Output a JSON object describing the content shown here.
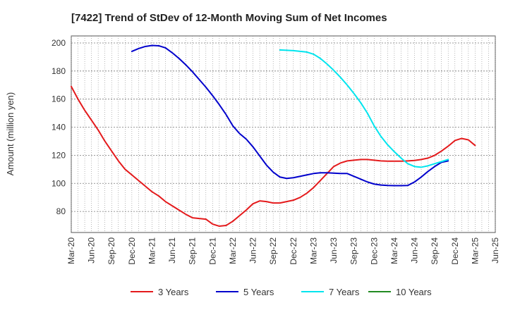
{
  "chart_data": {
    "type": "line",
    "title": "[7422]  Trend of StDev of 12-Month Moving Sum of Net Incomes",
    "ylabel": "Amount (million yen)",
    "xlabel": "",
    "ylim": [
      65,
      205
    ],
    "yticks": [
      80,
      100,
      120,
      140,
      160,
      180,
      200
    ],
    "xlim": [
      "2020-03",
      "2025-06"
    ],
    "xticks": [
      "Mar-20",
      "Jun-20",
      "Sep-20",
      "Dec-20",
      "Mar-21",
      "Jun-21",
      "Sep-21",
      "Dec-21",
      "Mar-22",
      "Jun-22",
      "Sep-22",
      "Dec-22",
      "Mar-23",
      "Jun-23",
      "Sep-23",
      "Dec-23",
      "Mar-24",
      "Jun-24",
      "Sep-24",
      "Dec-24",
      "Mar-25",
      "Jun-25"
    ],
    "grid": true,
    "legend_position": "bottom",
    "series": [
      {
        "name": "3 Years",
        "color": "#e41a1c",
        "points": [
          [
            "2020-03",
            169
          ],
          [
            "2020-04",
            160
          ],
          [
            "2020-05",
            152
          ],
          [
            "2020-06",
            145
          ],
          [
            "2020-07",
            138
          ],
          [
            "2020-08",
            130
          ],
          [
            "2020-09",
            123
          ],
          [
            "2020-10",
            116
          ],
          [
            "2020-11",
            110
          ],
          [
            "2020-12",
            106
          ],
          [
            "2021-01",
            102
          ],
          [
            "2021-02",
            98
          ],
          [
            "2021-03",
            94
          ],
          [
            "2021-04",
            91
          ],
          [
            "2021-05",
            87
          ],
          [
            "2021-06",
            84
          ],
          [
            "2021-07",
            81
          ],
          [
            "2021-08",
            78
          ],
          [
            "2021-09",
            75.5
          ],
          [
            "2021-10",
            75
          ],
          [
            "2021-11",
            74.5
          ],
          [
            "2021-12",
            71
          ],
          [
            "2022-01",
            69.5
          ],
          [
            "2022-02",
            70
          ],
          [
            "2022-03",
            73
          ],
          [
            "2022-04",
            77
          ],
          [
            "2022-05",
            81
          ],
          [
            "2022-06",
            85.5
          ],
          [
            "2022-07",
            87.5
          ],
          [
            "2022-08",
            87
          ],
          [
            "2022-09",
            86
          ],
          [
            "2022-10",
            86
          ],
          [
            "2022-11",
            87
          ],
          [
            "2022-12",
            88
          ],
          [
            "2023-01",
            90
          ],
          [
            "2023-02",
            93
          ],
          [
            "2023-03",
            97
          ],
          [
            "2023-04",
            102
          ],
          [
            "2023-05",
            107
          ],
          [
            "2023-06",
            112
          ],
          [
            "2023-07",
            114.5
          ],
          [
            "2023-08",
            116
          ],
          [
            "2023-09",
            116.5
          ],
          [
            "2023-10",
            117
          ],
          [
            "2023-11",
            117
          ],
          [
            "2023-12",
            116.5
          ],
          [
            "2024-01",
            116
          ],
          [
            "2024-02",
            115.8
          ],
          [
            "2024-03",
            115.8
          ],
          [
            "2024-04",
            115.8
          ],
          [
            "2024-05",
            116
          ],
          [
            "2024-06",
            116.3
          ],
          [
            "2024-07",
            117
          ],
          [
            "2024-08",
            118
          ],
          [
            "2024-09",
            120
          ],
          [
            "2024-10",
            123
          ],
          [
            "2024-11",
            126.5
          ],
          [
            "2024-12",
            130.5
          ],
          [
            "2025-01",
            132
          ],
          [
            "2025-02",
            131
          ],
          [
            "2025-03",
            127
          ]
        ]
      },
      {
        "name": "5 Years",
        "color": "#0000cc",
        "points": [
          [
            "2020-12",
            194
          ],
          [
            "2021-01",
            196
          ],
          [
            "2021-02",
            197.5
          ],
          [
            "2021-03",
            198.2
          ],
          [
            "2021-04",
            198
          ],
          [
            "2021-05",
            196.5
          ],
          [
            "2021-06",
            193
          ],
          [
            "2021-07",
            189
          ],
          [
            "2021-08",
            184.5
          ],
          [
            "2021-09",
            179.5
          ],
          [
            "2021-10",
            174
          ],
          [
            "2021-11",
            168.5
          ],
          [
            "2021-12",
            162.5
          ],
          [
            "2022-01",
            156
          ],
          [
            "2022-02",
            149
          ],
          [
            "2022-03",
            141
          ],
          [
            "2022-04",
            135.5
          ],
          [
            "2022-05",
            131.5
          ],
          [
            "2022-06",
            126
          ],
          [
            "2022-07",
            119.5
          ],
          [
            "2022-08",
            113
          ],
          [
            "2022-09",
            108
          ],
          [
            "2022-10",
            104.5
          ],
          [
            "2022-11",
            103.5
          ],
          [
            "2022-12",
            104
          ],
          [
            "2023-01",
            105
          ],
          [
            "2023-02",
            106
          ],
          [
            "2023-03",
            107
          ],
          [
            "2023-04",
            107.5
          ],
          [
            "2023-05",
            107.5
          ],
          [
            "2023-06",
            107.3
          ],
          [
            "2023-07",
            107
          ],
          [
            "2023-08",
            107
          ],
          [
            "2023-09",
            105
          ],
          [
            "2023-10",
            103
          ],
          [
            "2023-11",
            101
          ],
          [
            "2023-12",
            99.5
          ],
          [
            "2024-01",
            98.8
          ],
          [
            "2024-02",
            98.5
          ],
          [
            "2024-03",
            98.4
          ],
          [
            "2024-04",
            98.4
          ],
          [
            "2024-05",
            98.5
          ],
          [
            "2024-06",
            101
          ],
          [
            "2024-07",
            104.5
          ],
          [
            "2024-08",
            108.5
          ],
          [
            "2024-09",
            112
          ],
          [
            "2024-10",
            115
          ],
          [
            "2024-11",
            116
          ]
        ]
      },
      {
        "name": "7 Years",
        "color": "#00e5ee",
        "points": [
          [
            "2022-10",
            195
          ],
          [
            "2022-11",
            194.8
          ],
          [
            "2022-12",
            194.5
          ],
          [
            "2023-01",
            194
          ],
          [
            "2023-02",
            193.5
          ],
          [
            "2023-03",
            192
          ],
          [
            "2023-04",
            189
          ],
          [
            "2023-05",
            185
          ],
          [
            "2023-06",
            180.5
          ],
          [
            "2023-07",
            175.5
          ],
          [
            "2023-08",
            170
          ],
          [
            "2023-09",
            164
          ],
          [
            "2023-10",
            157.5
          ],
          [
            "2023-11",
            150
          ],
          [
            "2023-12",
            141
          ],
          [
            "2024-01",
            133.5
          ],
          [
            "2024-02",
            127.5
          ],
          [
            "2024-03",
            122.5
          ],
          [
            "2024-04",
            118
          ],
          [
            "2024-05",
            114
          ],
          [
            "2024-06",
            112
          ],
          [
            "2024-07",
            111.5
          ],
          [
            "2024-08",
            112.5
          ],
          [
            "2024-09",
            114
          ],
          [
            "2024-10",
            115.5
          ],
          [
            "2024-11",
            117
          ]
        ]
      },
      {
        "name": "10 Years",
        "color": "#228b22",
        "points": []
      }
    ]
  }
}
